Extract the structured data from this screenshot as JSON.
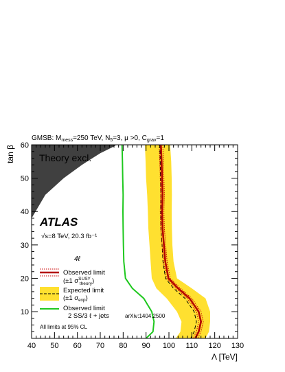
{
  "chart_data": {
    "type": "line",
    "header": "GMSB: M_mess=250 TeV, N_5=3, μ >0, C_grav=1",
    "experiment": "ATLAS",
    "energy_lumi": "√s=8 TeV, 20.3 fb⁻¹",
    "channel": "4ℓ",
    "xlabel": "Λ [TeV]",
    "ylabel": "tan β",
    "xlim": [
      40,
      130
    ],
    "ylim": [
      2,
      60
    ],
    "xticks": [
      "40",
      "50",
      "60",
      "70",
      "80",
      "90",
      "100",
      "110",
      "120",
      "130"
    ],
    "yticks": [
      "10",
      "20",
      "30",
      "40",
      "50",
      "60"
    ],
    "theory_region_label": "Theory excl.",
    "footnote": "All limits at 95% CL",
    "theory_excluded": {
      "x": [
        40,
        40,
        46,
        54,
        62,
        70,
        76,
        77
      ],
      "y": [
        60,
        38,
        45,
        50,
        54,
        57.5,
        59.5,
        60
      ]
    },
    "series": [
      {
        "name": "Observed limit",
        "x": [
          96.5,
          96.8,
          97.0,
          97.2,
          97.0,
          97.2,
          97.8,
          98.4,
          99.8,
          104,
          109,
          113,
          114,
          113,
          111.5
        ],
        "y": [
          60,
          55,
          50,
          45,
          40,
          35,
          30,
          25,
          20,
          17,
          14,
          10,
          7,
          4,
          2
        ],
        "color": "#b30000"
      },
      {
        "name": "(±1 σ_theory^SUSY)",
        "x_up": [
          97.3,
          97.6,
          97.8,
          98.0,
          97.8,
          98.0,
          98.6,
          99.2,
          100.6,
          105,
          110,
          114,
          115,
          114,
          112.5
        ],
        "x_down": [
          95.7,
          96.0,
          96.2,
          96.4,
          96.2,
          96.4,
          97.0,
          97.6,
          99.0,
          103,
          108,
          112,
          113,
          112,
          110.5
        ],
        "y": [
          60,
          55,
          50,
          45,
          40,
          35,
          30,
          25,
          20,
          17,
          14,
          10,
          7,
          4,
          2
        ],
        "color": "#cc0000"
      },
      {
        "name": "Expected limit",
        "x": [
          96,
          96.2,
          96.3,
          96.5,
          96.4,
          96.5,
          97.0,
          97.4,
          98.5,
          102,
          107,
          111,
          112,
          111,
          109.5
        ],
        "y": [
          60,
          55,
          50,
          45,
          40,
          35,
          30,
          25,
          20,
          17,
          14,
          10,
          7,
          4,
          2
        ],
        "color": "#000000"
      },
      {
        "name": "(±1 σ_exp)",
        "x_up": [
          100.5,
          101,
          101.2,
          101.3,
          101.2,
          101.3,
          101.5,
          102,
          103.5,
          110,
          116,
          118,
          118,
          117.5,
          116
        ],
        "x_down": [
          89.5,
          89.8,
          90.0,
          90.5,
          90.8,
          91.0,
          91.5,
          92.0,
          92.5,
          94.5,
          99,
          103.5,
          105.5,
          105,
          103
        ],
        "y": [
          60,
          55,
          50,
          45,
          40,
          35,
          30,
          25,
          20,
          17,
          14,
          10,
          7,
          4,
          2
        ],
        "color": "#ffe030"
      },
      {
        "name": "Observed limit 2 SS/3 ℓ + jets",
        "reference": "arXiv:1404.2500",
        "x": [
          79.5,
          79.7,
          79.8,
          80.0,
          79.9,
          80.0,
          80.1,
          80.3,
          81.0,
          84.0,
          89.0,
          92.5,
          93.5,
          93.0,
          90.0
        ],
        "y": [
          60,
          55,
          50,
          45,
          40,
          35,
          30,
          25,
          20,
          17,
          14,
          10,
          7,
          4,
          2
        ],
        "color": "#1ec81e"
      }
    ],
    "legend": [
      {
        "label": "Observed limit",
        "sub": "(±1 σ^SUSY_theory)"
      },
      {
        "label": "Expected limit",
        "sub": "(±1 σ_exp)"
      },
      {
        "label": "Observed limit",
        "sub": "2 SS/3 ℓ + jets",
        "ref": "arXiv:1404.2500"
      }
    ]
  }
}
